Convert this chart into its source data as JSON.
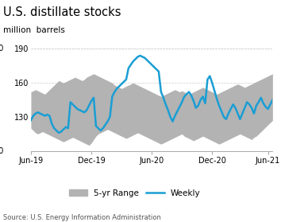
{
  "title": "U.S. distillate stocks",
  "ylabel": "million  barrels",
  "source": "Source: U.S. Energy Information Administration",
  "ylim": [
    100,
    190
  ],
  "yticks": [
    130,
    160,
    190
  ],
  "range_color": "#b3b3b3",
  "line_color": "#1a9ed4",
  "line_width": 1.8,
  "x_tick_labels": [
    "Jun-19",
    "Dec-19",
    "Jun-20",
    "Dec-20",
    "Jun-21"
  ],
  "x_tick_positions": [
    0,
    26,
    52,
    78,
    102
  ],
  "range_low": [
    120,
    118,
    116,
    115,
    116,
    117,
    116,
    115,
    114,
    113,
    112,
    111,
    110,
    109,
    108,
    109,
    110,
    111,
    112,
    111,
    110,
    109,
    108,
    107,
    106,
    105,
    107,
    110,
    113,
    115,
    116,
    117,
    118,
    119,
    118,
    117,
    116,
    115,
    114,
    113,
    112,
    111,
    112,
    113,
    114,
    115,
    116,
    115,
    114,
    113,
    112,
    111,
    110,
    109,
    108,
    107,
    106,
    107,
    108,
    109,
    110,
    111,
    112,
    113,
    114,
    115,
    113,
    112,
    111,
    110,
    109,
    110,
    111,
    112,
    113,
    112,
    111,
    110,
    109,
    108,
    107,
    106,
    107,
    108,
    109,
    110,
    111,
    112,
    113,
    114,
    115,
    114,
    113,
    112,
    111,
    110,
    112,
    113,
    115,
    117,
    119,
    121,
    123,
    125,
    127
  ],
  "range_high": [
    152,
    153,
    154,
    153,
    152,
    151,
    150,
    152,
    154,
    156,
    158,
    160,
    162,
    161,
    160,
    161,
    162,
    163,
    164,
    165,
    164,
    163,
    162,
    163,
    165,
    166,
    167,
    168,
    167,
    166,
    165,
    164,
    163,
    162,
    161,
    160,
    158,
    157,
    156,
    155,
    156,
    157,
    158,
    159,
    160,
    159,
    158,
    157,
    156,
    155,
    154,
    153,
    152,
    151,
    150,
    149,
    148,
    149,
    150,
    151,
    152,
    153,
    154,
    153,
    152,
    153,
    152,
    151,
    150,
    151,
    152,
    153,
    154,
    155,
    156,
    155,
    154,
    153,
    152,
    151,
    150,
    151,
    152,
    153,
    154,
    155,
    156,
    157,
    158,
    159,
    158,
    157,
    156,
    157,
    158,
    159,
    160,
    161,
    162,
    163,
    164,
    165,
    166,
    167,
    168
  ],
  "weekly": [
    127,
    131,
    133,
    134,
    133,
    132,
    131,
    132,
    131,
    124,
    120,
    118,
    116,
    117,
    119,
    121,
    120,
    143,
    141,
    139,
    137,
    136,
    135,
    134,
    136,
    140,
    144,
    147,
    122,
    120,
    118,
    120,
    123,
    126,
    130,
    148,
    152,
    155,
    157,
    159,
    161,
    163,
    173,
    176,
    179,
    181,
    183,
    184,
    183,
    182,
    180,
    178,
    176,
    174,
    172,
    170,
    152,
    147,
    141,
    136,
    130,
    126,
    131,
    135,
    139,
    143,
    148,
    150,
    152,
    149,
    144,
    138,
    140,
    145,
    148,
    142,
    163,
    166,
    160,
    153,
    146,
    140,
    135,
    130,
    128,
    133,
    137,
    141,
    138,
    133,
    128,
    133,
    138,
    143,
    141,
    138,
    133,
    140,
    143,
    147,
    142,
    139,
    137,
    141,
    145
  ]
}
